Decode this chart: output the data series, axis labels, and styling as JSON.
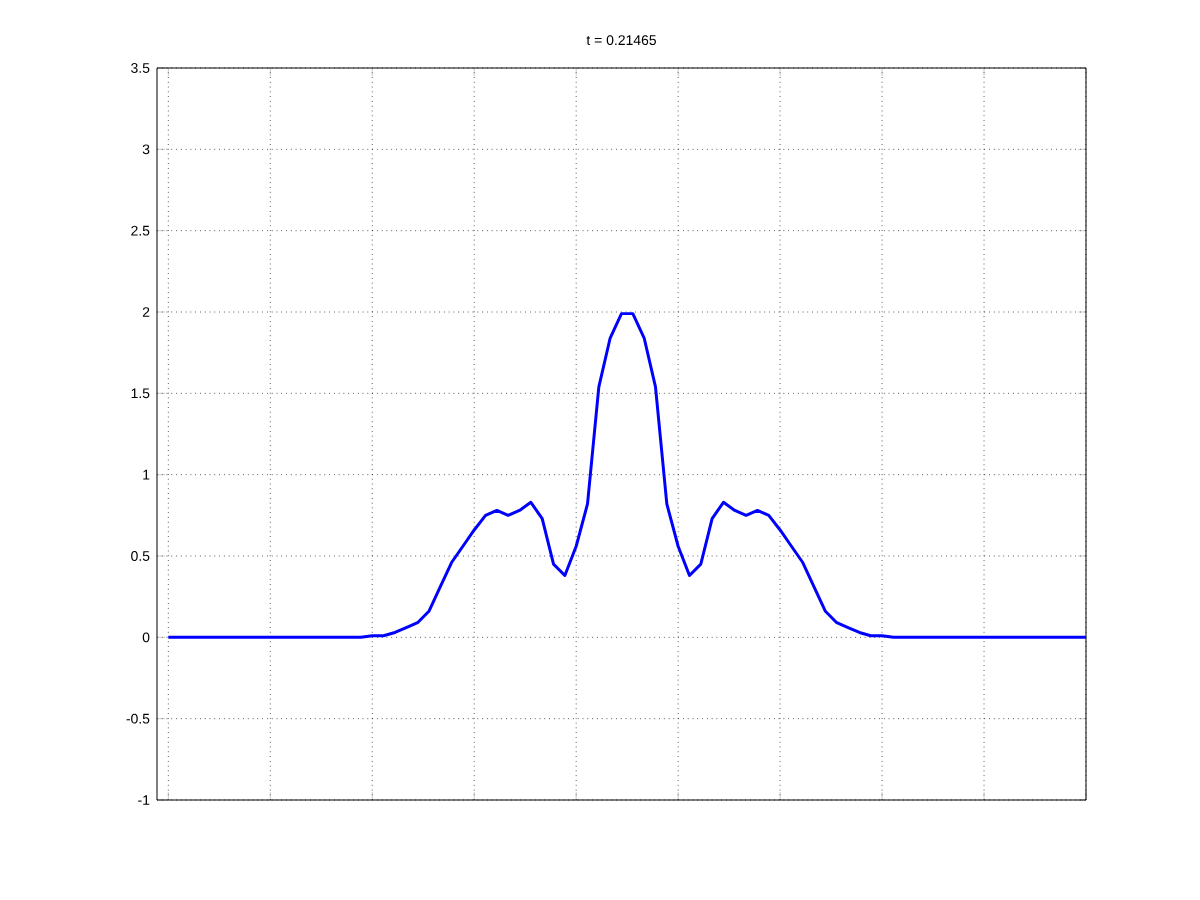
{
  "chart_data": {
    "type": "line",
    "title": "t = 0.21465",
    "categories": [
      null,
      null,
      null,
      null,
      null,
      null,
      null,
      null,
      null,
      null,
      null,
      null,
      null,
      null,
      null,
      null,
      null,
      null,
      null,
      null,
      null,
      null,
      null,
      null,
      null,
      null,
      null,
      null,
      null,
      null,
      null,
      null,
      null,
      null,
      null,
      null,
      null,
      null,
      null,
      null,
      null,
      null,
      null,
      null,
      null,
      null,
      null,
      null,
      null,
      null,
      null,
      null,
      null,
      null,
      null,
      null,
      null,
      null,
      null,
      null,
      null,
      null,
      null,
      null,
      null,
      null,
      null,
      null,
      null,
      null,
      null,
      null,
      null,
      null,
      null,
      null,
      null,
      null,
      null,
      null,
      null,
      null
    ],
    "ylim": [
      -1,
      3.5
    ],
    "yticks": [
      -1,
      -0.5,
      0,
      0.5,
      1,
      1.5,
      2,
      2.5,
      3,
      3.5
    ],
    "grid": true,
    "tick_labels": "y",
    "marker": "none",
    "line_style": "solid",
    "series": [
      {
        "color": "#0000ff",
        "values": [
          0,
          0,
          0,
          0,
          0,
          0,
          0,
          0,
          0,
          0,
          0,
          0,
          0,
          0,
          0,
          0,
          0,
          0,
          0.01,
          0.01,
          0.03,
          0.06,
          0.09,
          0.16,
          0.31,
          0.46,
          0.56,
          0.66,
          0.75,
          0.78,
          0.75,
          0.78,
          0.83,
          0.73,
          0.45,
          0.38,
          0.56,
          0.82,
          1.54,
          1.84,
          1.99,
          1.99,
          1.84,
          1.54,
          0.82,
          0.56,
          0.38,
          0.45,
          0.73,
          0.83,
          0.78,
          0.75,
          0.78,
          0.75,
          0.66,
          0.56,
          0.46,
          0.31,
          0.16,
          0.09,
          0.06,
          0.03,
          0.01,
          0.01,
          0,
          0,
          0,
          0,
          0,
          0,
          0,
          0,
          0,
          0,
          0,
          0,
          0,
          0,
          0,
          0,
          0,
          0
        ]
      }
    ]
  }
}
